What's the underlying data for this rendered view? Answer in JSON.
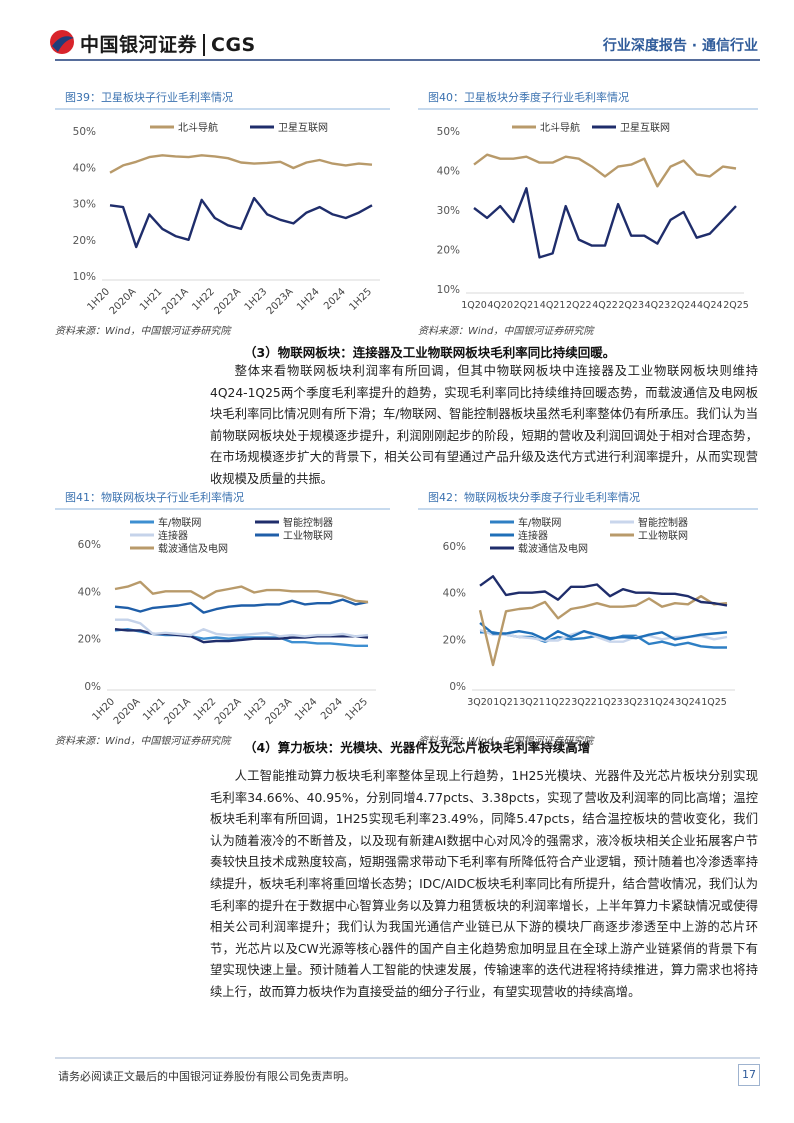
{
  "header": {
    "logo": "中国银河证券",
    "logo_en": "CGS",
    "report_type": "行业深度报告 · 通信行业"
  },
  "chart_data": [
    {
      "type": "line",
      "title": "图39：卫星板块子行业毛利率情况",
      "categories": [
        "1H20",
        null,
        "2020A",
        null,
        "1H21",
        null,
        "2021A",
        null,
        "1H22",
        null,
        "2022A",
        null,
        "1H23",
        null,
        "2023A",
        null,
        "1H24",
        null,
        "2024",
        null,
        "1H25"
      ],
      "series": [
        {
          "name": "北斗导航",
          "color": "#b89a6a",
          "values": [
            38.5,
            40.5,
            41.5,
            42.8,
            43.3,
            43,
            42.8,
            43.3,
            43,
            42.5,
            41.3,
            41,
            41.2,
            41.5,
            39.8,
            41.3,
            42,
            41,
            40.5,
            41,
            40.7
          ]
        },
        {
          "name": "卫星互联网",
          "color": "#1f2d6b",
          "values": [
            29.5,
            29,
            18,
            27,
            23,
            21,
            20,
            31,
            26,
            24,
            23,
            31.5,
            27,
            25.5,
            24.5,
            27.5,
            29,
            27,
            26,
            27.5,
            29.5
          ]
        }
      ],
      "ylim": [
        10,
        50
      ],
      "yticks": [
        {
          "value": 10,
          "label": "10%"
        },
        {
          "value": 20,
          "label": "20%"
        },
        {
          "value": 30,
          "label": "30%"
        },
        {
          "value": 40,
          "label": "40%"
        },
        {
          "value": 50,
          "label": "50%"
        }
      ],
      "legend": "top",
      "grid": false,
      "source": "资料来源：Wind，中国银河证券研究院"
    },
    {
      "type": "line",
      "title": "图40：卫星板块分季度子行业毛利率情况",
      "categories": [
        "1Q20",
        null,
        "4Q20",
        null,
        "2Q21",
        null,
        "4Q21",
        null,
        "2Q22",
        null,
        "4Q22",
        null,
        "2Q23",
        null,
        "4Q23",
        null,
        "2Q24",
        null,
        "4Q24",
        null,
        "2Q25"
      ],
      "series": [
        {
          "name": "北斗导航",
          "color": "#b89a6a",
          "values": [
            41.5,
            44,
            43,
            43,
            43.5,
            42,
            42,
            43.5,
            43,
            41,
            38.5,
            41,
            41.5,
            43,
            36,
            41,
            42.5,
            39,
            38.5,
            41,
            40.5
          ]
        },
        {
          "name": "卫星互联网",
          "color": "#1f2d6b",
          "values": [
            30.5,
            28,
            31,
            27,
            35.5,
            18,
            19,
            31,
            22.5,
            21,
            21,
            31.5,
            23.5,
            23.5,
            21.5,
            27.5,
            29.5,
            23,
            24,
            27.5,
            31
          ]
        }
      ],
      "ylim": [
        10,
        50
      ],
      "yticks": [
        {
          "value": 10,
          "label": "10%"
        },
        {
          "value": 20,
          "label": "20%"
        },
        {
          "value": 30,
          "label": "30%"
        },
        {
          "value": 40,
          "label": "40%"
        },
        {
          "value": 50,
          "label": "50%"
        }
      ],
      "legend": "top",
      "grid": false,
      "source": "资料来源：Wind，中国银河证券研究院"
    },
    {
      "type": "line",
      "title": "图41：物联网板块子行业毛利率情况",
      "categories": [
        "1H20",
        null,
        "2020A",
        null,
        "1H21",
        null,
        "2021A",
        null,
        "1H22",
        null,
        "2022A",
        null,
        "1H23",
        null,
        "2023A",
        null,
        "1H24",
        null,
        "2024",
        null,
        "1H25"
      ],
      "series": [
        {
          "name": "车/物联网",
          "color": "#3d8fd1",
          "values": [
            23.5,
            24,
            23,
            22,
            21.5,
            21.5,
            21,
            20,
            20.5,
            20,
            20.5,
            20.5,
            20.5,
            20.5,
            18.5,
            18.5,
            18,
            18,
            17.5,
            17,
            17
          ]
        },
        {
          "name": "智能控制器",
          "color": "#1f2d6b",
          "values": [
            24,
            23.5,
            23.5,
            22,
            22,
            21.5,
            21,
            18.5,
            19,
            19,
            19.5,
            20,
            20,
            20,
            20.5,
            20.5,
            21,
            21,
            21,
            21,
            20.5
          ]
        },
        {
          "name": "连接器",
          "color": "#c5d3ea",
          "values": [
            28,
            28,
            26.5,
            22,
            22.5,
            22,
            21.5,
            24,
            22,
            21.5,
            21.5,
            22,
            22.5,
            21,
            21.5,
            21,
            21.5,
            21.5,
            22,
            21,
            21.5
          ]
        },
        {
          "name": "工业物联网",
          "color": "#1f5ea8",
          "values": [
            33.5,
            33,
            31.5,
            33,
            33.5,
            34,
            35,
            31,
            32.5,
            33.5,
            34,
            34,
            34.5,
            34.5,
            36,
            34.5,
            35,
            35,
            36.5,
            34.5,
            35.5
          ]
        },
        {
          "name": "载波通信及电网",
          "color": "#b89a6a",
          "values": [
            41,
            42,
            44,
            39,
            40,
            40,
            40,
            37,
            40,
            41,
            42,
            39.5,
            40.5,
            40.5,
            40,
            40,
            40,
            39,
            38,
            36,
            35.5
          ]
        }
      ],
      "ylim": [
        0,
        60
      ],
      "yticks": [
        {
          "value": 0,
          "label": "0%"
        },
        {
          "value": 20,
          "label": "20%"
        },
        {
          "value": 40,
          "label": "40%"
        },
        {
          "value": 60,
          "label": "60%"
        }
      ],
      "legend": "top",
      "grid": false,
      "source": "资料来源：Wind，中国银河证券研究院"
    },
    {
      "type": "line",
      "title": "图42：物联网板块分季度子行业毛利率情况",
      "categories": [
        "3Q20",
        null,
        "1Q21",
        null,
        "3Q21",
        null,
        "1Q22",
        null,
        "3Q22",
        null,
        "1Q23",
        null,
        "3Q23",
        null,
        "1Q24",
        null,
        "3Q24",
        null,
        "1Q25",
        null
      ],
      "series": [
        {
          "name": "车/物联网",
          "color": "#2e7fc4",
          "values": [
            23,
            23,
            22,
            21,
            21,
            19,
            21,
            20,
            20.5,
            21.5,
            20,
            21.5,
            21.5,
            18,
            19,
            17.5,
            18.5,
            17,
            16.5,
            16.5
          ]
        },
        {
          "name": "智能控制器",
          "color": "#c9d6ec",
          "values": [
            24,
            22,
            22,
            21,
            20.5,
            19.5,
            19.5,
            22,
            23.5,
            21,
            19,
            19,
            21,
            21.5,
            20,
            21,
            21,
            21.5,
            20,
            21
          ]
        },
        {
          "name": "连接器",
          "color": "#1f6fb8",
          "values": [
            27,
            22.5,
            22.5,
            23.5,
            22.5,
            20,
            23.5,
            21,
            23.5,
            22,
            20.5,
            21,
            20.5,
            22,
            23,
            20,
            21,
            22,
            22.5,
            23
          ]
        },
        {
          "name": "工业物联网",
          "color": "#b89a6a",
          "values": [
            32.5,
            9,
            32,
            33,
            33.5,
            36,
            29,
            33,
            34,
            35.5,
            34,
            34,
            34.5,
            37.5,
            34,
            35.5,
            35,
            38.5,
            35,
            35.5
          ]
        },
        {
          "name": "载波通信及电网",
          "color": "#1f2d6b",
          "values": [
            43,
            47,
            39,
            40,
            40,
            40.5,
            37,
            42.5,
            42.5,
            43.5,
            38.5,
            41.5,
            40,
            40,
            39.5,
            39.5,
            38.5,
            36,
            35.5,
            34.5
          ]
        }
      ],
      "ylim": [
        0,
        60
      ],
      "yticks": [
        {
          "value": 0,
          "label": "0%"
        },
        {
          "value": 20,
          "label": "20%"
        },
        {
          "value": 40,
          "label": "40%"
        },
        {
          "value": 60,
          "label": "60%"
        }
      ],
      "legend": "top",
      "grid": false,
      "source": "资料来源：Wind，中国银河证券研究院"
    }
  ],
  "sections": [
    {
      "heading": "（3）物联网板块：连接器及工业物联网板块毛利率同比持续回暖。",
      "paragraph": "整体来看物联网板块利润率有所回调，但其中物联网板块中连接器及工业物联网板块则维持4Q24-1Q25两个季度毛利率提升的趋势，实现毛利率同比持续维持回暖态势，而载波通信及电网板块毛利率同比情况则有所下滑；车/物联网、智能控制器板块虽然毛利率整体仍有所承压。我们认为当前物联网板块处于规模逐步提升，利润刚刚起步的阶段，短期的营收及利润回调处于相对合理态势，在市场规模逐步扩大的背景下，相关公司有望通过产品升级及迭代方式进行利润率提升，从而实现营收规模及质量的共振。"
    },
    {
      "heading": "（4）算力板块：光模块、光器件及光芯片板块毛利率持续高增",
      "paragraph": "人工智能推动算力板块毛利率整体呈现上行趋势，1H25光模块、光器件及光芯片板块分别实现毛利率34.66%、40.95%，分别同增4.77pcts、3.38pcts，实现了营收及利润率的同比高增；温控板块毛利率有所回调，1H25实现毛利率23.49%，同降5.47pcts，结合温控板块的营收变化，我们认为随着液冷的不断普及，以及现有新建AI数据中心对风冷的强需求，液冷板块相关企业拓展客户节奏较快且技术成熟度较高，短期强需求带动下毛利率有所降低符合产业逻辑，预计随着也冷渗透率持续提升，板块毛利率将重回增长态势；IDC/AIDC板块毛利率同比有所提升，结合营收情况，我们认为毛利率的提升在于数据中心智算业务以及算力租赁板块的利润率增长，上半年算力卡紧缺情况或使得相关公司利润率提升；我们认为我国光通信产业链已从下游的模块厂商逐步渗透至中上游的芯片环节，光芯片以及CW光源等核心器件的国产自主化趋势愈加明显且在全球上游产业链紧俏的背景下有望实现快速上量。预计随着人工智能的快速发展，传输速率的迭代进程将持续推进，算力需求也将持续上行，故而算力板块作为直接受益的细分子行业，有望实现营收的持续高增。"
    }
  ],
  "footer": {
    "disclaimer": "请务必阅读正文最后的中国银河证券股份有限公司免责声明。",
    "page": "17"
  }
}
